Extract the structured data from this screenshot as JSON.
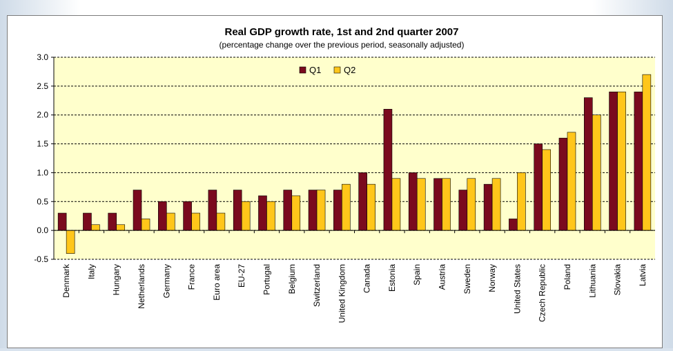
{
  "chart_data": {
    "type": "bar",
    "title": "Real GDP growth rate, 1st and 2nd quarter 2007",
    "subtitle": "(percentage change over the previous period, seasonally adjusted)",
    "categories": [
      "Denmark",
      "Italy",
      "Hungary",
      "Netherlands",
      "Germany",
      "France",
      "Euro area",
      "EU-27",
      "Portugal",
      "Belgium",
      "Switzerland",
      "United Kingdom",
      "Canada",
      "Estonia",
      "Spain",
      "Austria",
      "Sweden",
      "Norway",
      "United States",
      "Czech Republic",
      "Poland",
      "Lithuania",
      "Slovakia",
      "Latvia"
    ],
    "series": [
      {
        "name": "Q1",
        "color": "#7a0a1e",
        "values": [
          0.3,
          0.3,
          0.3,
          0.7,
          0.5,
          0.5,
          0.7,
          0.7,
          0.6,
          0.7,
          0.7,
          0.7,
          1.0,
          2.1,
          1.0,
          0.9,
          0.7,
          0.8,
          0.2,
          1.5,
          1.6,
          2.3,
          2.4,
          2.4
        ]
      },
      {
        "name": "Q2",
        "color": "#ffc61a",
        "values": [
          -0.4,
          0.1,
          0.1,
          0.2,
          0.3,
          0.3,
          0.3,
          0.5,
          0.5,
          0.6,
          0.7,
          0.8,
          0.8,
          0.9,
          0.9,
          0.9,
          0.9,
          0.9,
          1.0,
          1.4,
          1.7,
          2.0,
          2.4,
          2.7
        ]
      }
    ],
    "yticks": [
      "3.0",
      "2.5",
      "2.0",
      "1.5",
      "1.0",
      "0.5",
      "0.0",
      "-0.5"
    ],
    "ylim": [
      -0.5,
      3.0
    ],
    "legend": "top-center",
    "grid": true,
    "plot_background": "#ffffcc"
  }
}
